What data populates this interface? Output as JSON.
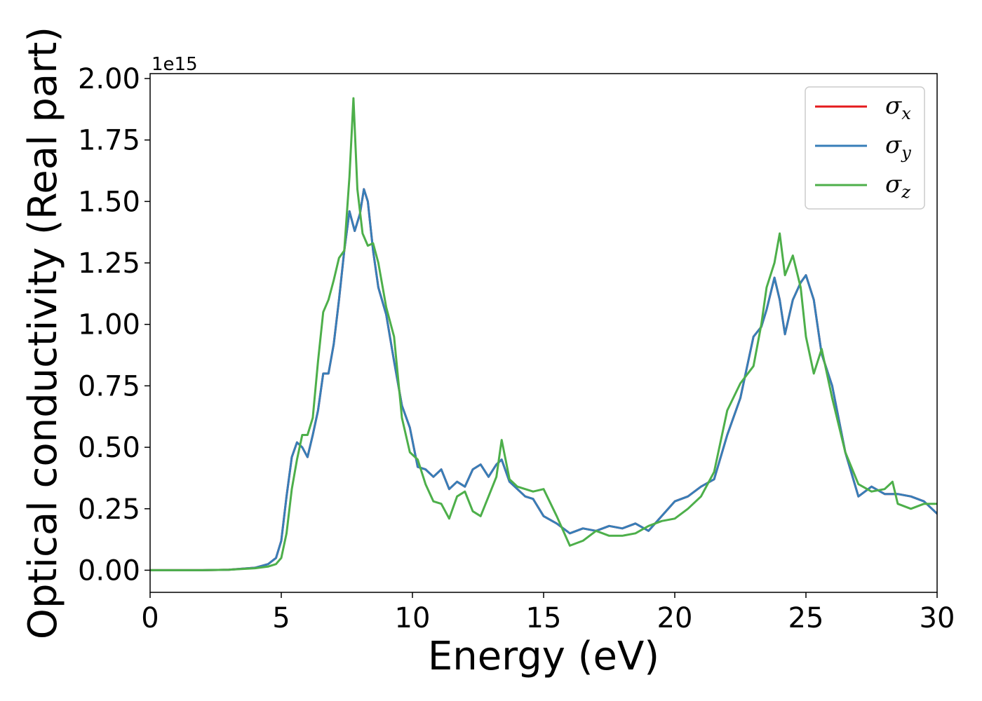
{
  "chart_data": {
    "type": "line",
    "title": "",
    "xlabel": "Energy (eV)",
    "ylabel": "Optical conductivity (Real part)",
    "y_offset_text": "1e15",
    "xlim": [
      0,
      30
    ],
    "ylim": [
      -0.09,
      2.02
    ],
    "y_scale": 1000000000000000.0,
    "grid": false,
    "legend_position": "top-right",
    "x_ticks": [
      0,
      5,
      10,
      15,
      20,
      25,
      30
    ],
    "x_tick_labels": [
      "0",
      "5",
      "10",
      "15",
      "20",
      "25",
      "30"
    ],
    "y_ticks": [
      0.0,
      0.25,
      0.5,
      0.75,
      1.0,
      1.25,
      1.5,
      1.75,
      2.0
    ],
    "y_tick_labels": [
      "0.00",
      "0.25",
      "0.50",
      "0.75",
      "1.00",
      "1.25",
      "1.50",
      "1.75",
      "2.00"
    ],
    "series": [
      {
        "name": "σx",
        "symbol": "σ",
        "subscript": "x",
        "color": "#e41a1c",
        "x": [
          0,
          1,
          2,
          3,
          4,
          4.5,
          4.8,
          5.0,
          5.2,
          5.4,
          5.6,
          5.8,
          6.0,
          6.2,
          6.4,
          6.6,
          6.8,
          7.0,
          7.2,
          7.4,
          7.6,
          7.8,
          8.0,
          8.15,
          8.3,
          8.5,
          8.7,
          9.0,
          9.3,
          9.6,
          9.9,
          10.2,
          10.5,
          10.8,
          11.1,
          11.4,
          11.7,
          12.0,
          12.3,
          12.6,
          12.9,
          13.2,
          13.4,
          13.7,
          14.0,
          14.3,
          14.6,
          15.0,
          15.5,
          16.0,
          16.5,
          17.0,
          17.5,
          18.0,
          18.5,
          19.0,
          19.5,
          20.0,
          20.5,
          21.0,
          21.5,
          22.0,
          22.5,
          23.0,
          23.3,
          23.5,
          23.8,
          24.0,
          24.2,
          24.5,
          24.8,
          25.0,
          25.3,
          25.6,
          26.0,
          26.5,
          27.0,
          27.5,
          28.0,
          28.5,
          29.0,
          29.5,
          30.0
        ],
        "y": [
          0,
          0,
          0,
          0.002,
          0.01,
          0.025,
          0.05,
          0.12,
          0.3,
          0.46,
          0.52,
          0.5,
          0.46,
          0.55,
          0.65,
          0.8,
          0.8,
          0.92,
          1.1,
          1.3,
          1.46,
          1.38,
          1.45,
          1.55,
          1.5,
          1.3,
          1.15,
          1.04,
          0.85,
          0.67,
          0.58,
          0.42,
          0.41,
          0.38,
          0.41,
          0.33,
          0.36,
          0.34,
          0.41,
          0.43,
          0.38,
          0.43,
          0.45,
          0.36,
          0.33,
          0.3,
          0.29,
          0.22,
          0.19,
          0.15,
          0.17,
          0.16,
          0.18,
          0.17,
          0.19,
          0.16,
          0.22,
          0.28,
          0.3,
          0.34,
          0.37,
          0.55,
          0.7,
          0.95,
          0.99,
          1.06,
          1.19,
          1.1,
          0.96,
          1.1,
          1.17,
          1.2,
          1.1,
          0.88,
          0.75,
          0.48,
          0.3,
          0.34,
          0.31,
          0.31,
          0.3,
          0.28,
          0.23
        ]
      },
      {
        "name": "σy",
        "symbol": "σ",
        "subscript": "y",
        "color": "#377eb8",
        "x": [
          0,
          1,
          2,
          3,
          4,
          4.5,
          4.8,
          5.0,
          5.2,
          5.4,
          5.6,
          5.8,
          6.0,
          6.2,
          6.4,
          6.6,
          6.8,
          7.0,
          7.2,
          7.4,
          7.6,
          7.8,
          8.0,
          8.15,
          8.3,
          8.5,
          8.7,
          9.0,
          9.3,
          9.6,
          9.9,
          10.2,
          10.5,
          10.8,
          11.1,
          11.4,
          11.7,
          12.0,
          12.3,
          12.6,
          12.9,
          13.2,
          13.4,
          13.7,
          14.0,
          14.3,
          14.6,
          15.0,
          15.5,
          16.0,
          16.5,
          17.0,
          17.5,
          18.0,
          18.5,
          19.0,
          19.5,
          20.0,
          20.5,
          21.0,
          21.5,
          22.0,
          22.5,
          23.0,
          23.3,
          23.5,
          23.8,
          24.0,
          24.2,
          24.5,
          24.8,
          25.0,
          25.3,
          25.6,
          26.0,
          26.5,
          27.0,
          27.5,
          28.0,
          28.5,
          29.0,
          29.5,
          30.0
        ],
        "y": [
          0,
          0,
          0,
          0.002,
          0.01,
          0.025,
          0.05,
          0.12,
          0.3,
          0.46,
          0.52,
          0.5,
          0.46,
          0.55,
          0.65,
          0.8,
          0.8,
          0.92,
          1.1,
          1.3,
          1.46,
          1.38,
          1.45,
          1.55,
          1.5,
          1.3,
          1.15,
          1.04,
          0.85,
          0.67,
          0.58,
          0.42,
          0.41,
          0.38,
          0.41,
          0.33,
          0.36,
          0.34,
          0.41,
          0.43,
          0.38,
          0.43,
          0.45,
          0.36,
          0.33,
          0.3,
          0.29,
          0.22,
          0.19,
          0.15,
          0.17,
          0.16,
          0.18,
          0.17,
          0.19,
          0.16,
          0.22,
          0.28,
          0.3,
          0.34,
          0.37,
          0.55,
          0.7,
          0.95,
          0.99,
          1.06,
          1.19,
          1.1,
          0.96,
          1.1,
          1.17,
          1.2,
          1.1,
          0.88,
          0.75,
          0.48,
          0.3,
          0.34,
          0.31,
          0.31,
          0.3,
          0.28,
          0.23
        ]
      },
      {
        "name": "σz",
        "symbol": "σ",
        "subscript": "z",
        "color": "#4daf4a",
        "x": [
          0,
          1,
          2,
          3,
          4,
          4.5,
          4.8,
          5.0,
          5.2,
          5.4,
          5.6,
          5.8,
          6.0,
          6.2,
          6.4,
          6.6,
          6.8,
          7.0,
          7.2,
          7.4,
          7.6,
          7.75,
          7.9,
          8.1,
          8.3,
          8.5,
          8.7,
          9.0,
          9.3,
          9.6,
          9.9,
          10.2,
          10.5,
          10.8,
          11.1,
          11.4,
          11.7,
          12.0,
          12.3,
          12.6,
          12.9,
          13.2,
          13.4,
          13.7,
          14.0,
          14.3,
          14.6,
          15.0,
          15.5,
          16.0,
          16.5,
          17.0,
          17.5,
          18.0,
          18.5,
          19.0,
          19.5,
          20.0,
          20.5,
          21.0,
          21.5,
          22.0,
          22.5,
          23.0,
          23.3,
          23.5,
          23.8,
          24.0,
          24.2,
          24.5,
          24.8,
          25.0,
          25.3,
          25.6,
          26.0,
          26.5,
          27.0,
          27.5,
          28.0,
          28.3,
          28.5,
          29.0,
          29.5,
          30.0
        ],
        "y": [
          0,
          0,
          0,
          0.002,
          0.008,
          0.015,
          0.025,
          0.05,
          0.15,
          0.33,
          0.45,
          0.55,
          0.55,
          0.62,
          0.85,
          1.05,
          1.1,
          1.18,
          1.27,
          1.3,
          1.6,
          1.92,
          1.55,
          1.37,
          1.32,
          1.33,
          1.25,
          1.07,
          0.95,
          0.62,
          0.48,
          0.45,
          0.35,
          0.28,
          0.27,
          0.21,
          0.3,
          0.32,
          0.24,
          0.22,
          0.3,
          0.38,
          0.53,
          0.37,
          0.34,
          0.33,
          0.32,
          0.33,
          0.22,
          0.1,
          0.12,
          0.16,
          0.14,
          0.14,
          0.15,
          0.18,
          0.2,
          0.21,
          0.25,
          0.3,
          0.4,
          0.65,
          0.76,
          0.83,
          1.0,
          1.15,
          1.25,
          1.37,
          1.2,
          1.28,
          1.15,
          0.95,
          0.8,
          0.9,
          0.7,
          0.48,
          0.35,
          0.32,
          0.33,
          0.36,
          0.27,
          0.25,
          0.27,
          0.27
        ]
      }
    ]
  }
}
